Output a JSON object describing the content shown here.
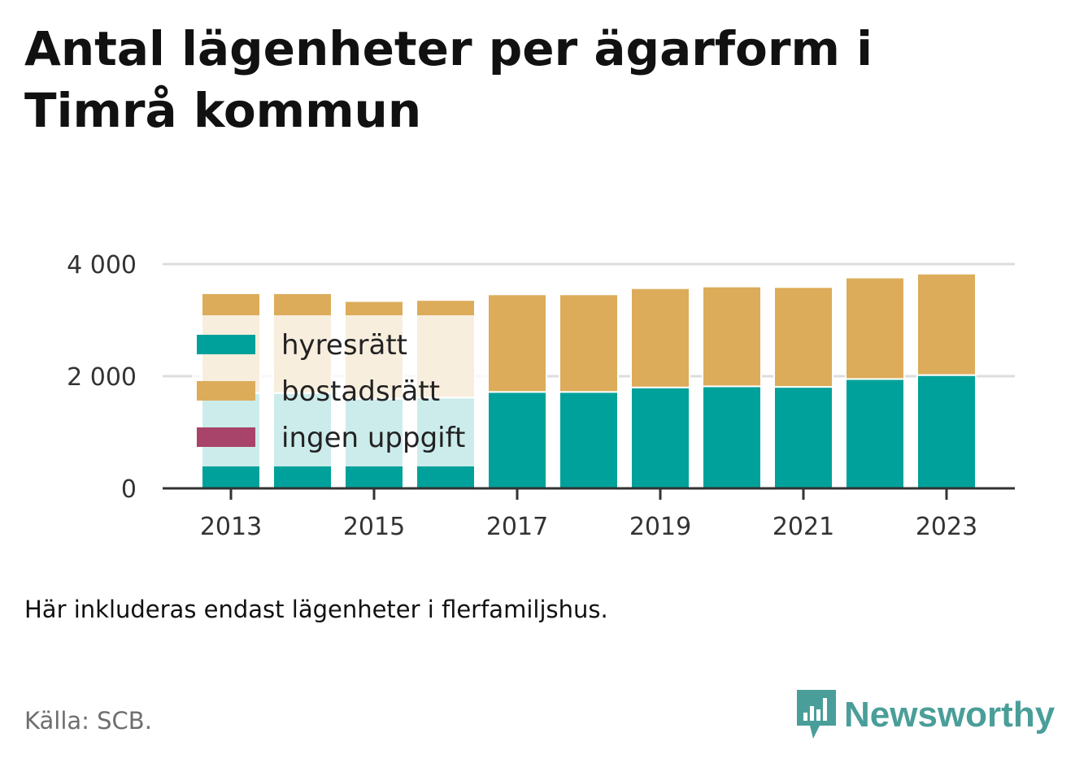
{
  "title": "Antal lägenheter per ägarform i Timrå kommun",
  "note": "Här inkluderas endast lägenheter i flerfamiljshus.",
  "source": "Källa: SCB.",
  "brand": {
    "name": "Newsworthy",
    "icon": "newsworthy-chat-bars-icon",
    "color": "#4a9e99"
  },
  "chart_data": {
    "type": "bar",
    "stacked": true,
    "categories": [
      "2013",
      "2014",
      "2015",
      "2016",
      "2017",
      "2018",
      "2019",
      "2020",
      "2021",
      "2022",
      "2023"
    ],
    "series": [
      {
        "name": "hyresrätt",
        "color": "#00a19a",
        "values": [
          1700,
          1700,
          1600,
          1620,
          1720,
          1720,
          1800,
          1820,
          1810,
          1950,
          2020
        ]
      },
      {
        "name": "bostadsrätt",
        "color": "#dcac5a",
        "values": [
          1780,
          1780,
          1740,
          1740,
          1740,
          1740,
          1770,
          1780,
          1780,
          1810,
          1810
        ]
      },
      {
        "name": "ingen uppgift",
        "color": "#a84369",
        "values": [
          0,
          0,
          0,
          0,
          0,
          0,
          0,
          0,
          0,
          0,
          0
        ]
      }
    ],
    "yticks": [
      0,
      2000,
      4000
    ],
    "ytick_labels": [
      "0",
      "2 000",
      "4 000"
    ],
    "xtick_labels": [
      "2013",
      "2015",
      "2017",
      "2019",
      "2021",
      "2023"
    ],
    "ylim": [
      0,
      4000
    ],
    "grid": true,
    "legend_position": "top-left, inside"
  }
}
